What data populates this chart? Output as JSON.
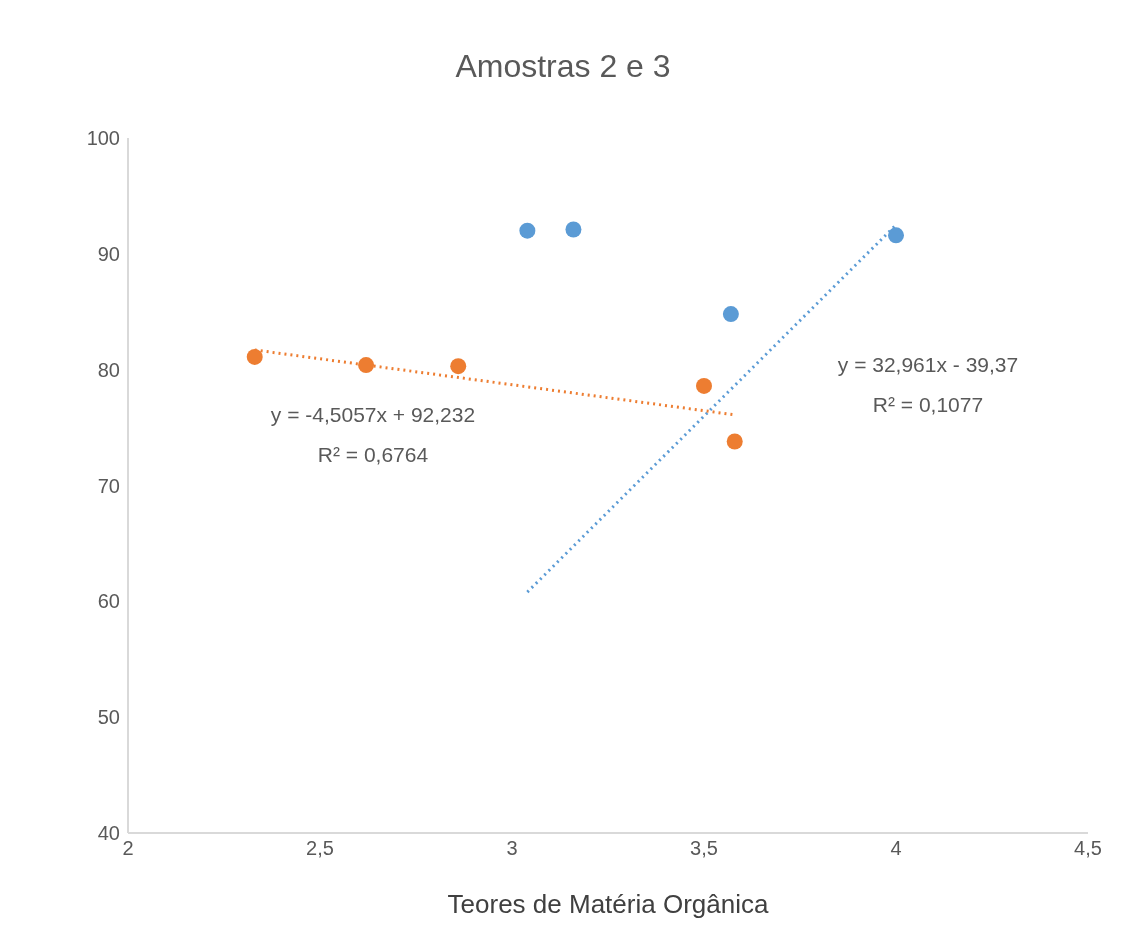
{
  "chart_data": {
    "type": "scatter",
    "title": "Amostras 2 e 3",
    "xlabel": "Teores de Matéria Orgânica",
    "xlim": [
      2,
      4.5
    ],
    "xticks": [
      2,
      {
        "value": 2.5,
        "label": "2,5"
      },
      3,
      {
        "value": 3.5,
        "label": "3,5"
      },
      4,
      {
        "value": 4.5,
        "label": "4,5"
      }
    ],
    "ylim": [
      40,
      100
    ],
    "yticks": [
      40,
      50,
      60,
      70,
      80,
      90,
      100
    ],
    "grid": false,
    "marker": "circle",
    "series": [
      {
        "color": "#5b9bd5",
        "x": [
          3.04,
          3.16,
          3.57,
          4.0
        ],
        "values": [
          92,
          92.1,
          84.8,
          91.6
        ]
      },
      {
        "color": "#ed7d31",
        "x": [
          2.33,
          2.62,
          2.86,
          3.5,
          3.58
        ],
        "values": [
          81.1,
          80.4,
          80.3,
          78.6,
          73.8
        ]
      },
      {
        "type": "line",
        "color": "#5b9bd5",
        "line_style": "dotted",
        "marker": "none",
        "x": [
          3.04,
          4.0
        ],
        "values": [
          60.8,
          92.5
        ]
      },
      {
        "type": "line",
        "color": "#ed7d31",
        "line_style": "dotted",
        "marker": "none",
        "x": [
          2.33,
          3.58
        ],
        "values": [
          81.7,
          76.1
        ]
      }
    ],
    "annotations": [
      "y = 32,961x - 39,37",
      "R² = 0,1077",
      "y = -4,5057x + 92,232",
      "R² = 0,6764"
    ]
  }
}
